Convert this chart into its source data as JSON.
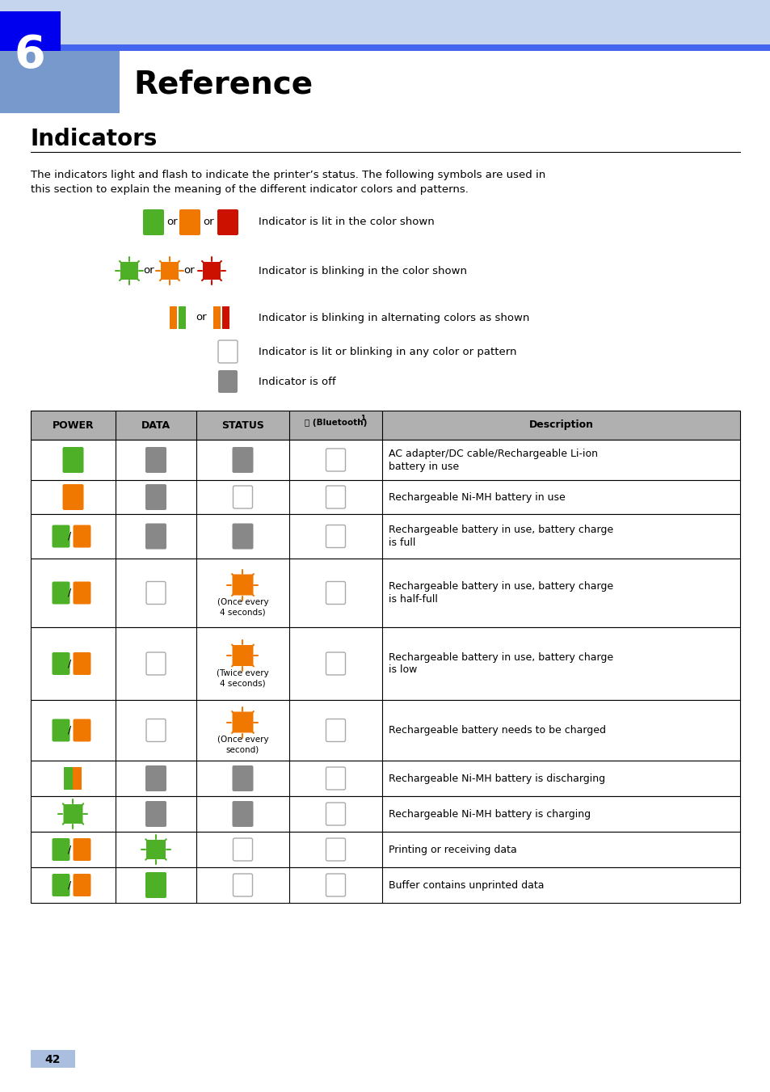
{
  "title": "Reference",
  "chapter_num": "6",
  "section_title": "Indicators",
  "body_text_line1": "The indicators light and flash to indicate the printer’s status. The following symbols are used in",
  "body_text_line2": "this section to explain the meaning of the different indicator colors and patterns.",
  "green": "#4db026",
  "orange": "#f07800",
  "red": "#cc1100",
  "gray": "#888888",
  "table_rows": [
    {
      "power": {
        "type": "solid",
        "color": "#4db026"
      },
      "data": {
        "type": "solid",
        "color": "#888888"
      },
      "status": {
        "type": "solid",
        "color": "#888888"
      },
      "bt": {
        "type": "white_rect"
      },
      "desc": "AC adapter/DC cable/Rechargeable Li-ion\nbattery in use"
    },
    {
      "power": {
        "type": "solid",
        "color": "#f07800"
      },
      "data": {
        "type": "solid",
        "color": "#888888"
      },
      "status": {
        "type": "white_rect"
      },
      "bt": {
        "type": "white_rect"
      },
      "desc": "Rechargeable Ni-MH battery in use"
    },
    {
      "power": {
        "type": "pair",
        "color1": "#4db026",
        "color2": "#f07800"
      },
      "data": {
        "type": "solid",
        "color": "#888888"
      },
      "status": {
        "type": "solid",
        "color": "#888888"
      },
      "bt": {
        "type": "white_rect"
      },
      "desc": "Rechargeable battery in use, battery charge\nis full"
    },
    {
      "power": {
        "type": "pair",
        "color1": "#4db026",
        "color2": "#f07800"
      },
      "data": {
        "type": "white_rect"
      },
      "status": {
        "type": "blink",
        "color": "#f07800",
        "subtext": "(Once every\n4 seconds)"
      },
      "bt": {
        "type": "white_rect"
      },
      "desc": "Rechargeable battery in use, battery charge\nis half-full"
    },
    {
      "power": {
        "type": "pair",
        "color1": "#4db026",
        "color2": "#f07800"
      },
      "data": {
        "type": "white_rect"
      },
      "status": {
        "type": "blink",
        "color": "#f07800",
        "subtext": "(Twice every\n4 seconds)"
      },
      "bt": {
        "type": "white_rect"
      },
      "desc": "Rechargeable battery in use, battery charge\nis low"
    },
    {
      "power": {
        "type": "pair",
        "color1": "#4db026",
        "color2": "#f07800"
      },
      "data": {
        "type": "white_rect"
      },
      "status": {
        "type": "blink",
        "color": "#f07800",
        "subtext": "(Once every\nsecond)"
      },
      "bt": {
        "type": "white_rect"
      },
      "desc": "Rechargeable battery needs to be charged"
    },
    {
      "power": {
        "type": "split_vert",
        "color1": "#4db026",
        "color2": "#f07800"
      },
      "data": {
        "type": "solid",
        "color": "#888888"
      },
      "status": {
        "type": "solid",
        "color": "#888888"
      },
      "bt": {
        "type": "white_rect"
      },
      "desc": "Rechargeable Ni-MH battery is discharging"
    },
    {
      "power": {
        "type": "blink",
        "color": "#4db026"
      },
      "data": {
        "type": "solid",
        "color": "#888888"
      },
      "status": {
        "type": "solid",
        "color": "#888888"
      },
      "bt": {
        "type": "white_rect"
      },
      "desc": "Rechargeable Ni-MH battery is charging"
    },
    {
      "power": {
        "type": "pair",
        "color1": "#4db026",
        "color2": "#f07800"
      },
      "data": {
        "type": "blink",
        "color": "#4db026"
      },
      "status": {
        "type": "white_rect"
      },
      "bt": {
        "type": "white_rect"
      },
      "desc": "Printing or receiving data"
    },
    {
      "power": {
        "type": "pair",
        "color1": "#4db026",
        "color2": "#f07800"
      },
      "data": {
        "type": "solid",
        "color": "#4db026"
      },
      "status": {
        "type": "white_rect"
      },
      "bt": {
        "type": "white_rect"
      },
      "desc": "Buffer contains unprinted data"
    }
  ],
  "page_num": "42"
}
